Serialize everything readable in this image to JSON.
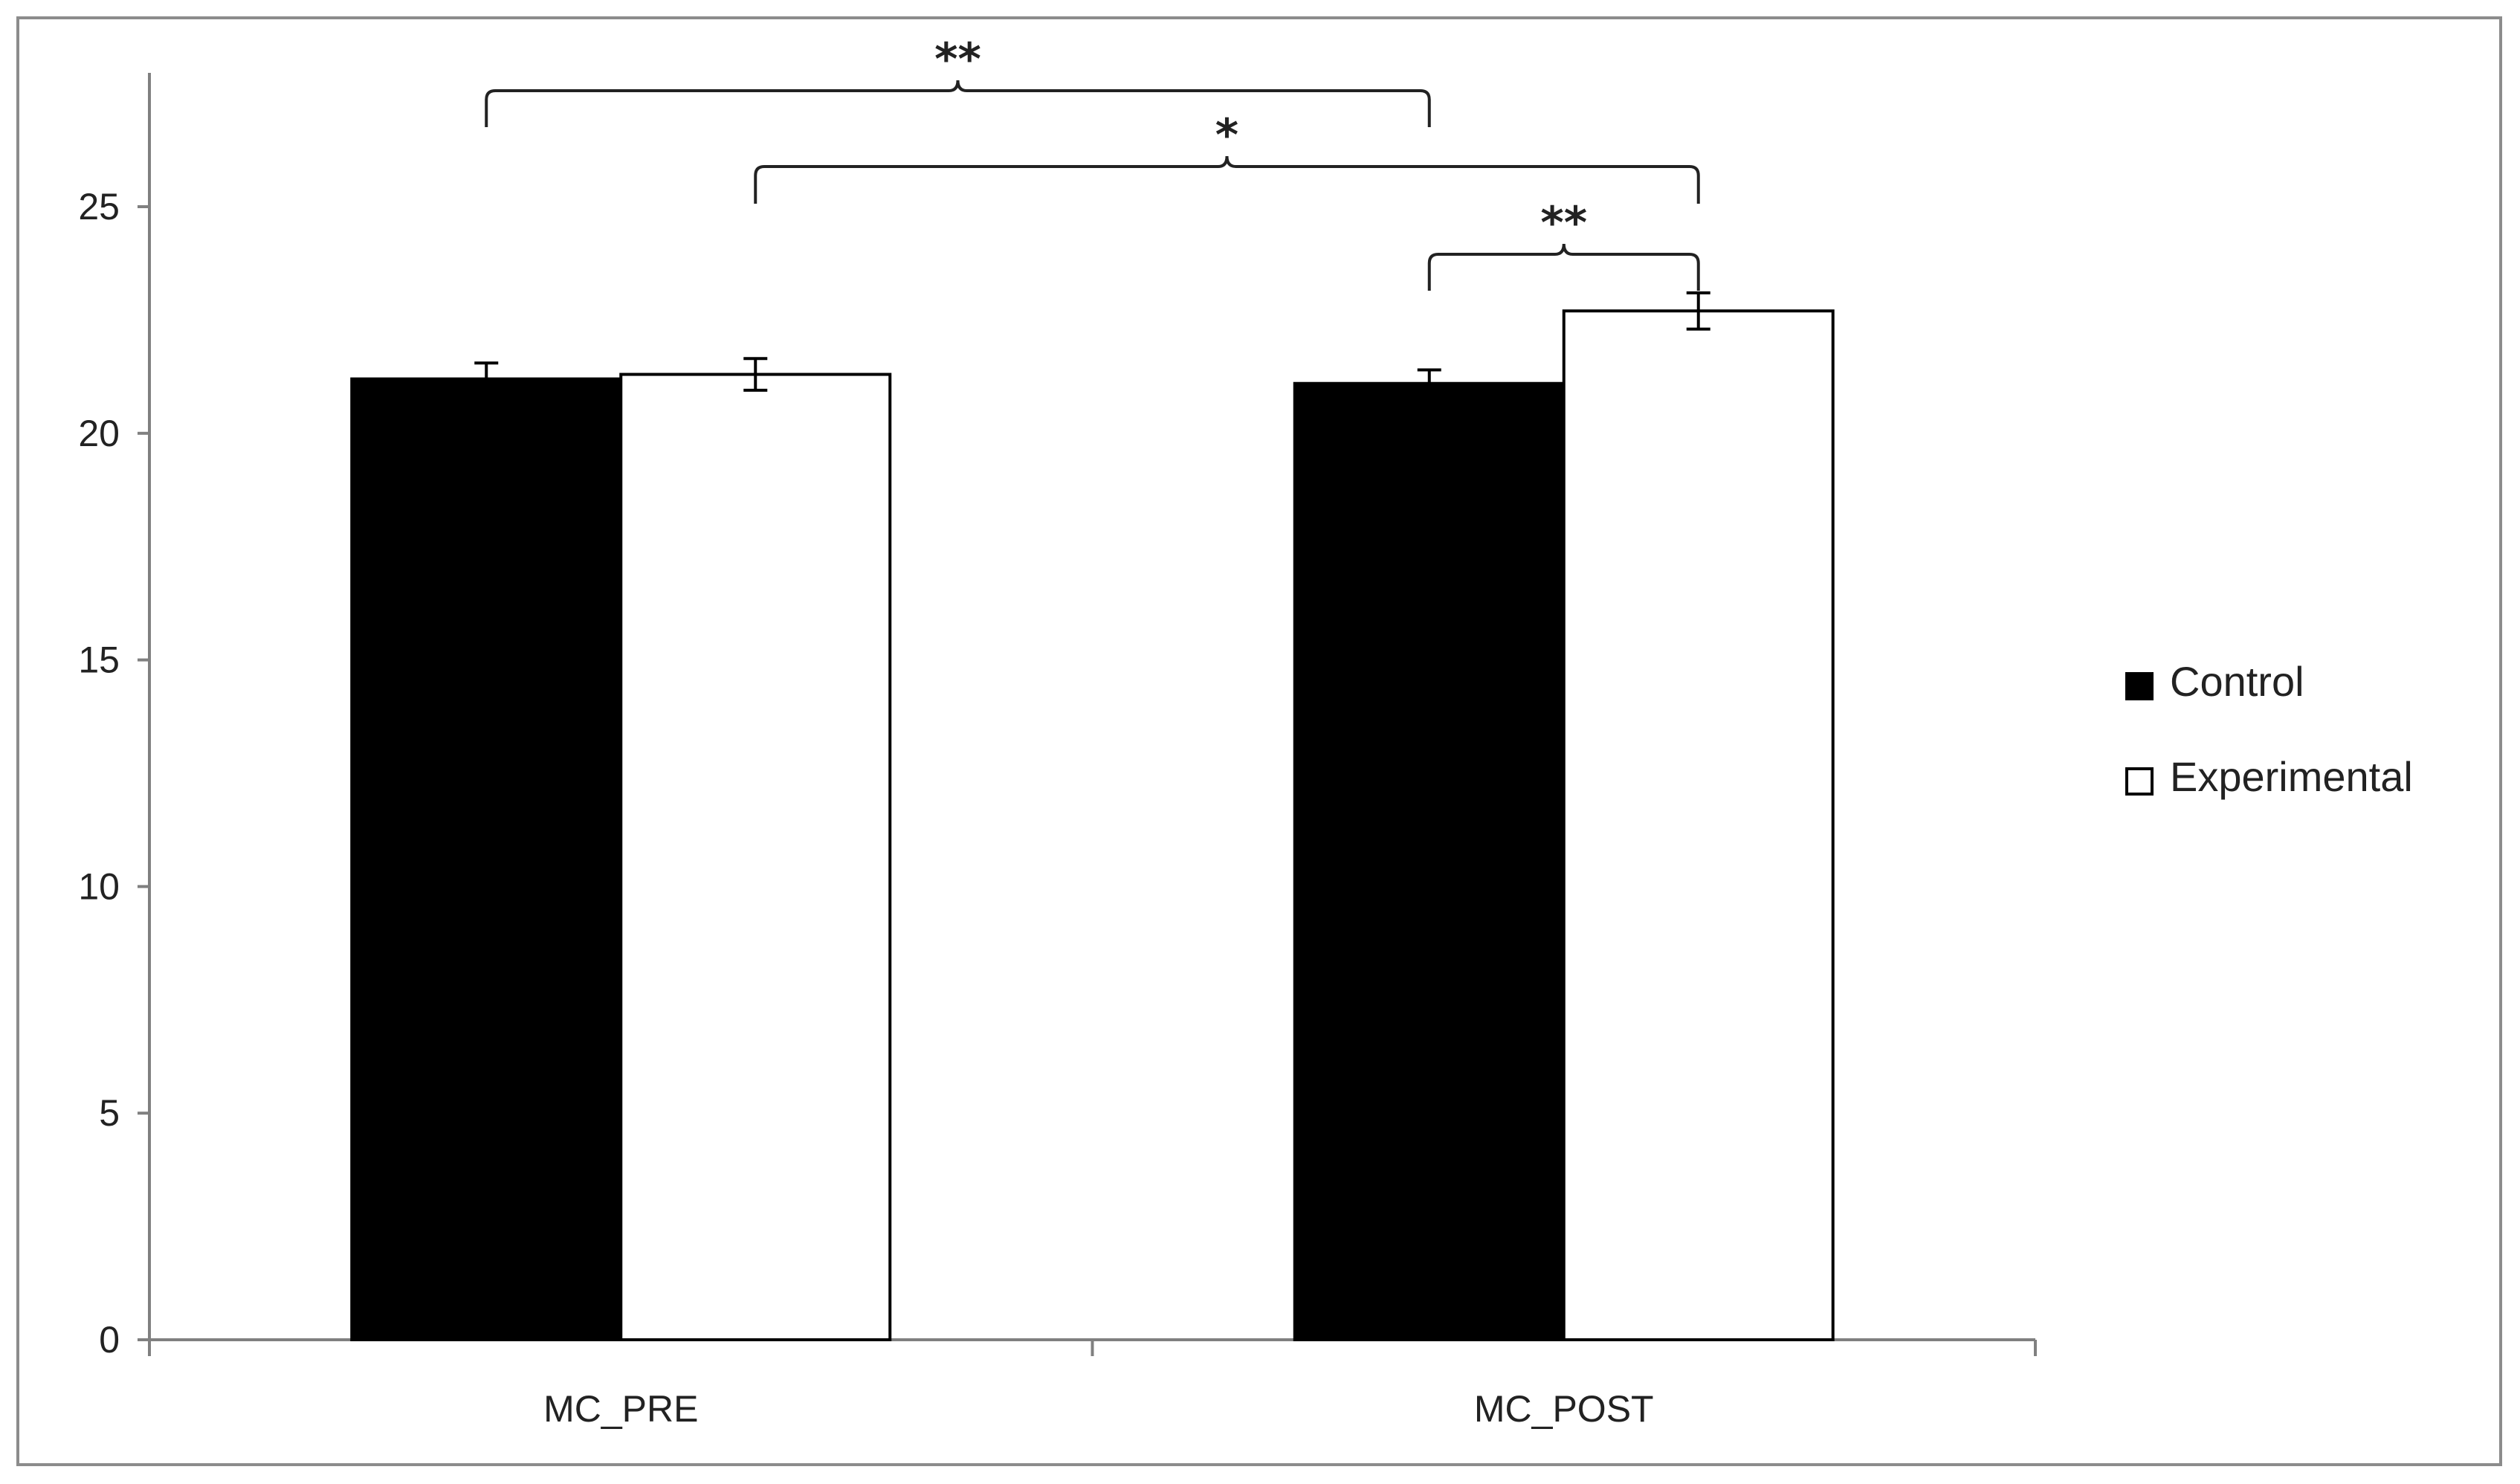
{
  "chart_data": {
    "type": "bar",
    "title": "",
    "xlabel": "",
    "ylabel": "",
    "categories": [
      "MC_PRE",
      "MC_POST"
    ],
    "ylim": [
      0,
      25
    ],
    "yticks": [
      0,
      5,
      10,
      15,
      20,
      25
    ],
    "grid": false,
    "legend_position": "right",
    "series": [
      {
        "name": "Control",
        "values": [
          21.2,
          21.1
        ],
        "errors": [
          0.35,
          0.3
        ],
        "color": "#000000"
      },
      {
        "name": "Experimental",
        "values": [
          21.3,
          22.7
        ],
        "errors": [
          0.35,
          0.4
        ],
        "color": "#ffffff"
      }
    ],
    "significance": [
      {
        "label": "**",
        "from": {
          "category": 0,
          "series": 0
        },
        "to": {
          "category": 1,
          "series": 0
        }
      },
      {
        "label": "*",
        "from": {
          "category": 0,
          "series": 1
        },
        "to": {
          "category": 1,
          "series": 1
        }
      },
      {
        "label": "**",
        "from": {
          "category": 1,
          "series": 0
        },
        "to": {
          "category": 1,
          "series": 1
        }
      }
    ]
  }
}
